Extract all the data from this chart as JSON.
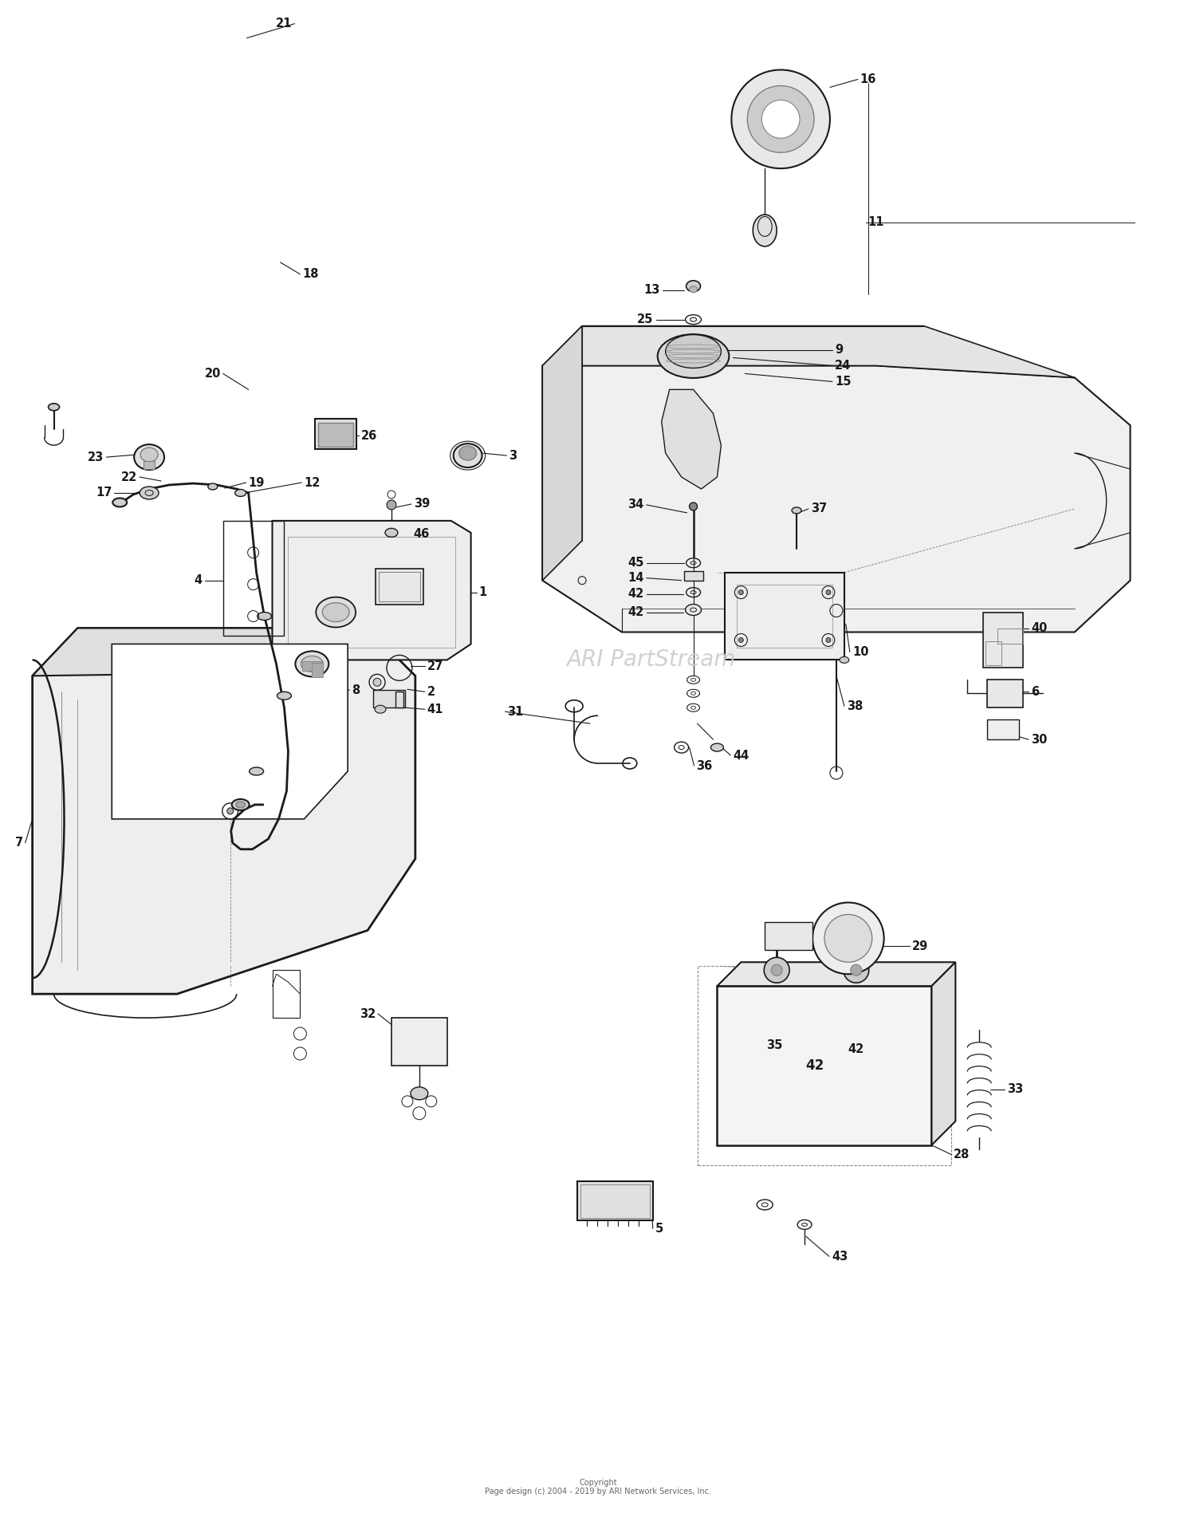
{
  "bg_color": "#ffffff",
  "line_color": "#1a1a1a",
  "fig_width": 15.0,
  "fig_height": 19.27,
  "watermark_text": "ARI PartStream",
  "watermark_color": "#cccccc",
  "copyright_text": "Copyright\nPage design (c) 2004 - 2019 by ARI Network Services, Inc.",
  "part_label_fontsize": 10.5
}
